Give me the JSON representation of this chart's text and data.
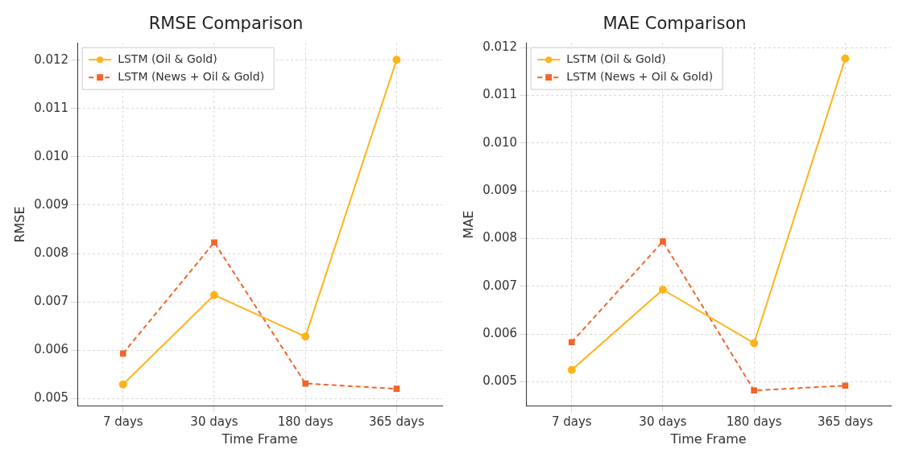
{
  "chart_data": [
    {
      "type": "line",
      "title": "RMSE Comparison",
      "xlabel": "Time Frame",
      "ylabel": "RMSE",
      "categories": [
        "7 days",
        "30 days",
        "180 days",
        "365 days"
      ],
      "series": [
        {
          "name": "LSTM (Oil & Gold)",
          "color": "#ffb31a",
          "values": [
            0.00529,
            0.00714,
            0.00628,
            0.01201
          ],
          "marker": "circle",
          "line_style": "solid"
        },
        {
          "name": "LSTM (News + Oil & Gold)",
          "color": "#f2652a",
          "values": [
            0.00593,
            0.00823,
            0.00531,
            0.0052
          ],
          "marker": "square",
          "line_style": "dashed"
        }
      ],
      "ylim": [
        0.00484,
        0.01236
      ],
      "yticks": [
        0.005,
        0.006,
        0.007,
        0.008,
        0.009,
        {
          "value": 0.01,
          "label": "0.010"
        },
        0.011,
        0.012
      ],
      "grid": true,
      "legend": "top left"
    },
    {
      "type": "line",
      "title": "MAE Comparison",
      "xlabel": "Time Frame",
      "ylabel": "MAE",
      "categories": [
        "7 days",
        "30 days",
        "180 days",
        "365 days"
      ],
      "series": [
        {
          "name": "LSTM (Oil & Gold)",
          "color": "#ffb31a",
          "values": [
            0.00525,
            0.00693,
            0.00581,
            0.01177
          ],
          "marker": "circle",
          "line_style": "solid"
        },
        {
          "name": "LSTM (News + Oil & Gold)",
          "color": "#f2652a",
          "values": [
            0.00583,
            0.00794,
            0.00482,
            0.00492
          ],
          "marker": "square",
          "line_style": "dashed"
        }
      ],
      "ylim": [
        0.00449,
        0.0121
      ],
      "yticks": [
        0.005,
        0.006,
        0.007,
        0.008,
        0.009,
        {
          "value": 0.01,
          "label": "0.010"
        },
        0.011,
        0.012
      ],
      "grid": true,
      "legend": "top left"
    }
  ]
}
